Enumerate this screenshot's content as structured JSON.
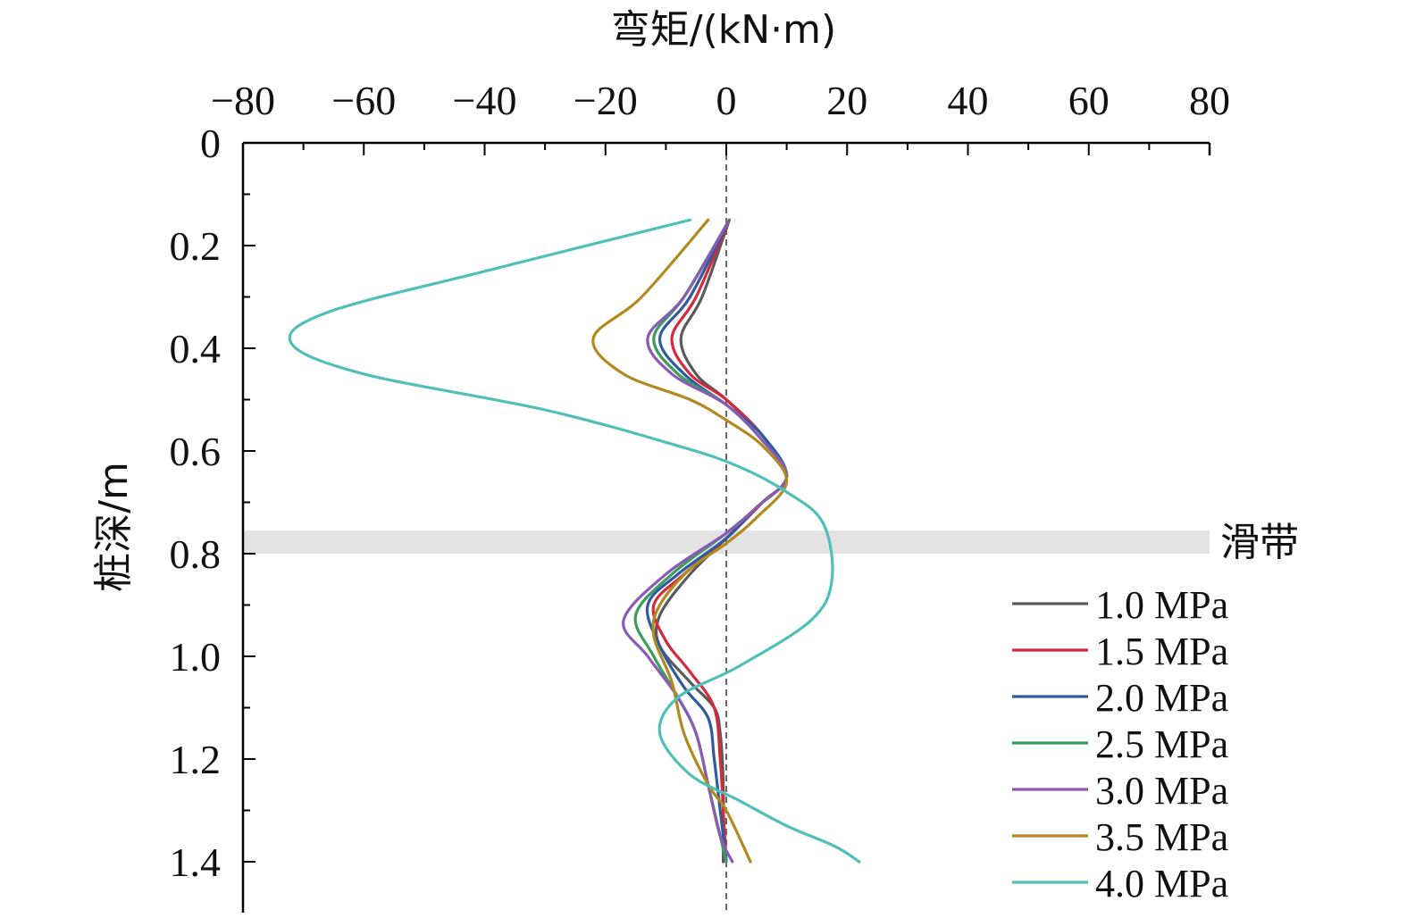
{
  "chart_data": {
    "type": "line",
    "xlabel": "弯矩/(kN·m)",
    "ylabel": "桩深/m",
    "xlim": [
      -80,
      80
    ],
    "ylim": [
      0,
      1.5
    ],
    "y_inverted": true,
    "x_axis_position": "top",
    "x_ticks": [
      -80,
      -60,
      -40,
      -20,
      0,
      20,
      40,
      60,
      80
    ],
    "x_tick_labels": [
      "−80",
      "−60",
      "−40",
      "−20",
      "0",
      "20",
      "40",
      "60",
      "80"
    ],
    "y_ticks": [
      0,
      0.2,
      0.4,
      0.6,
      0.8,
      1.0,
      1.2,
      1.4
    ],
    "y_tick_labels": [
      "0",
      "0.2",
      "0.4",
      "0.6",
      "0.8",
      "1.0",
      "1.2",
      "1.4"
    ],
    "reference_line": {
      "x": 0,
      "style": "dashed"
    },
    "band": {
      "label": "滑带",
      "y_from": 0.755,
      "y_to": 0.8,
      "color": "#e3e3e3"
    },
    "legend_position": "bottom-right",
    "grid": false,
    "series": [
      {
        "name": "1.0 MPa",
        "color": "#5a5a5a",
        "points": [
          [
            0.5,
            0.15
          ],
          [
            -4,
            0.3
          ],
          [
            -7.5,
            0.38
          ],
          [
            -5,
            0.45
          ],
          [
            0,
            0.5
          ],
          [
            6,
            0.57
          ],
          [
            10,
            0.65
          ],
          [
            6,
            0.7
          ],
          [
            0,
            0.77
          ],
          [
            -6,
            0.84
          ],
          [
            -11,
            0.92
          ],
          [
            -11,
            0.98
          ],
          [
            -6,
            1.05
          ],
          [
            -2,
            1.1
          ],
          [
            -1,
            1.15
          ],
          [
            -0.5,
            1.25
          ],
          [
            -0.5,
            1.4
          ]
        ]
      },
      {
        "name": "1.5 MPa",
        "color": "#d42a3c",
        "points": [
          [
            0.5,
            0.15
          ],
          [
            -5,
            0.3
          ],
          [
            -9,
            0.38
          ],
          [
            -6,
            0.45
          ],
          [
            0,
            0.5
          ],
          [
            6,
            0.57
          ],
          [
            10,
            0.65
          ],
          [
            6,
            0.7
          ],
          [
            0,
            0.77
          ],
          [
            -7,
            0.84
          ],
          [
            -12,
            0.9
          ],
          [
            -10,
            0.97
          ],
          [
            -6,
            1.03
          ],
          [
            -2,
            1.1
          ],
          [
            -1,
            1.2
          ],
          [
            -0.5,
            1.3
          ],
          [
            0,
            1.4
          ]
        ]
      },
      {
        "name": "2.0 MPa",
        "color": "#2e5a9e",
        "points": [
          [
            0.5,
            0.15
          ],
          [
            -6,
            0.3
          ],
          [
            -11,
            0.38
          ],
          [
            -7,
            0.45
          ],
          [
            0,
            0.51
          ],
          [
            6,
            0.57
          ],
          [
            10,
            0.65
          ],
          [
            5,
            0.71
          ],
          [
            0,
            0.77
          ],
          [
            -8,
            0.84
          ],
          [
            -13,
            0.9
          ],
          [
            -11,
            0.98
          ],
          [
            -7,
            1.06
          ],
          [
            -3,
            1.12
          ],
          [
            -2,
            1.2
          ],
          [
            -1,
            1.3
          ],
          [
            0,
            1.4
          ]
        ]
      },
      {
        "name": "2.5 MPa",
        "color": "#3a9e5a",
        "points": [
          [
            0.5,
            0.15
          ],
          [
            -7,
            0.3
          ],
          [
            -12,
            0.38
          ],
          [
            -8,
            0.45
          ],
          [
            0,
            0.51
          ],
          [
            6,
            0.58
          ],
          [
            10,
            0.65
          ],
          [
            5,
            0.71
          ],
          [
            0,
            0.76
          ],
          [
            -9,
            0.84
          ],
          [
            -15,
            0.92
          ],
          [
            -12,
            1.0
          ],
          [
            -8,
            1.08
          ],
          [
            -5,
            1.15
          ],
          [
            -3,
            1.25
          ],
          [
            -1,
            1.35
          ],
          [
            0,
            1.4
          ]
        ]
      },
      {
        "name": "3.0 MPa",
        "color": "#8a5bb5",
        "points": [
          [
            0.5,
            0.15
          ],
          [
            -7,
            0.3
          ],
          [
            -13,
            0.38
          ],
          [
            -9,
            0.45
          ],
          [
            0,
            0.51
          ],
          [
            6,
            0.58
          ],
          [
            10,
            0.65
          ],
          [
            5,
            0.71
          ],
          [
            0,
            0.76
          ],
          [
            -10,
            0.84
          ],
          [
            -17,
            0.93
          ],
          [
            -13,
            1.0
          ],
          [
            -8,
            1.08
          ],
          [
            -5,
            1.15
          ],
          [
            -3,
            1.25
          ],
          [
            -1,
            1.35
          ],
          [
            1,
            1.4
          ]
        ]
      },
      {
        "name": "3.5 MPa",
        "color": "#b08a1e",
        "points": [
          [
            -3,
            0.15
          ],
          [
            -14,
            0.3
          ],
          [
            -22,
            0.38
          ],
          [
            -17,
            0.45
          ],
          [
            -6,
            0.5
          ],
          [
            0,
            0.54
          ],
          [
            6,
            0.59
          ],
          [
            10,
            0.66
          ],
          [
            5,
            0.73
          ],
          [
            0,
            0.78
          ],
          [
            -6,
            0.83
          ],
          [
            -11,
            0.9
          ],
          [
            -12,
            0.96
          ],
          [
            -9,
            1.05
          ],
          [
            -7,
            1.15
          ],
          [
            -3,
            1.25
          ],
          [
            0,
            1.3
          ],
          [
            4,
            1.4
          ]
        ]
      },
      {
        "name": "4.0 MPa",
        "color": "#4fbfb8",
        "points": [
          [
            -6,
            0.15
          ],
          [
            -40,
            0.25
          ],
          [
            -66,
            0.33
          ],
          [
            -72,
            0.39
          ],
          [
            -60,
            0.45
          ],
          [
            -30,
            0.52
          ],
          [
            -8,
            0.59
          ],
          [
            2,
            0.63
          ],
          [
            10,
            0.68
          ],
          [
            16,
            0.74
          ],
          [
            17.5,
            0.85
          ],
          [
            14,
            0.93
          ],
          [
            2,
            1.02
          ],
          [
            -8,
            1.08
          ],
          [
            -11,
            1.15
          ],
          [
            -6,
            1.23
          ],
          [
            2,
            1.28
          ],
          [
            10,
            1.33
          ],
          [
            18,
            1.37
          ],
          [
            22,
            1.4
          ]
        ]
      }
    ]
  }
}
